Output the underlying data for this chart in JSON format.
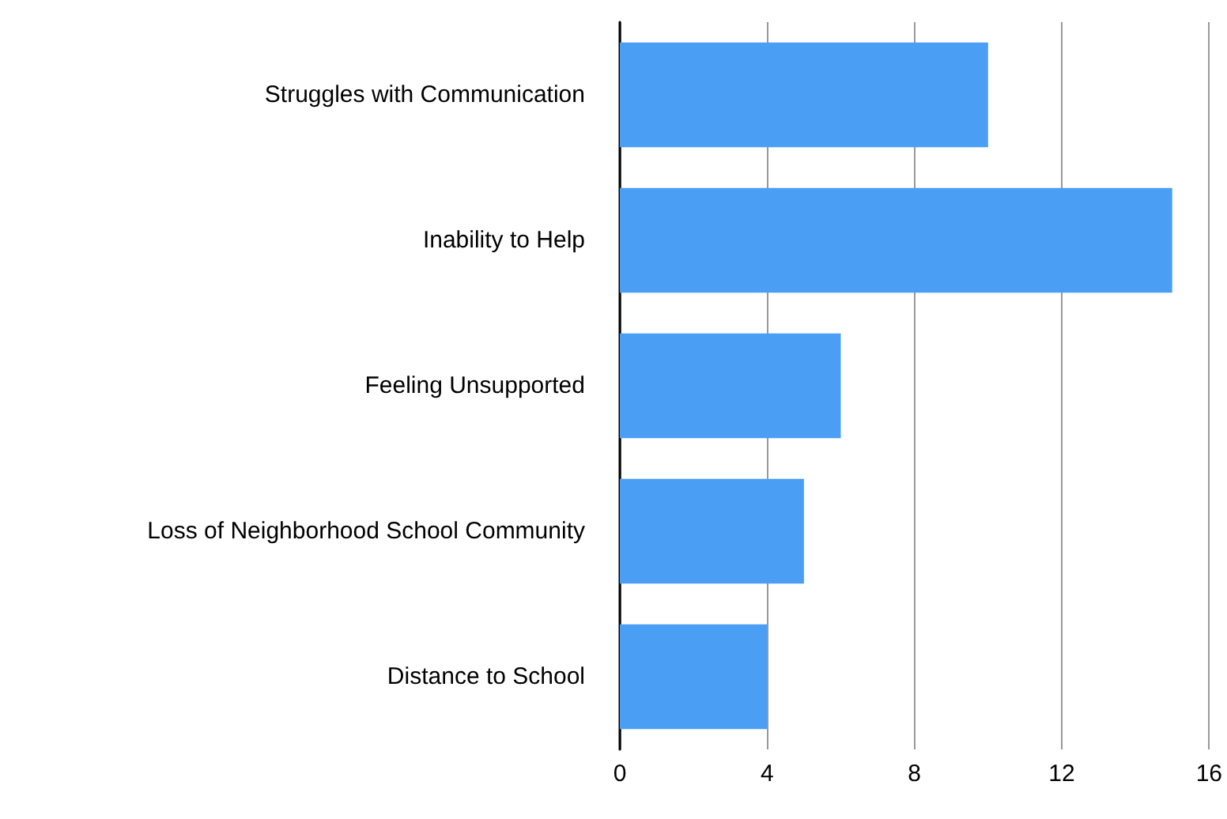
{
  "chart_data": {
    "type": "bar",
    "orientation": "horizontal",
    "categories": [
      "Struggles with Communication",
      "Inability to Help",
      "Feeling Unsupported",
      "Loss of Neighborhood School Community",
      "Distance to School"
    ],
    "values": [
      10,
      15,
      6,
      5,
      4
    ],
    "color": "#4a9ff5",
    "xlim": [
      0,
      16
    ],
    "xticks": [
      0,
      4,
      8,
      12,
      16
    ],
    "grid": "x"
  }
}
